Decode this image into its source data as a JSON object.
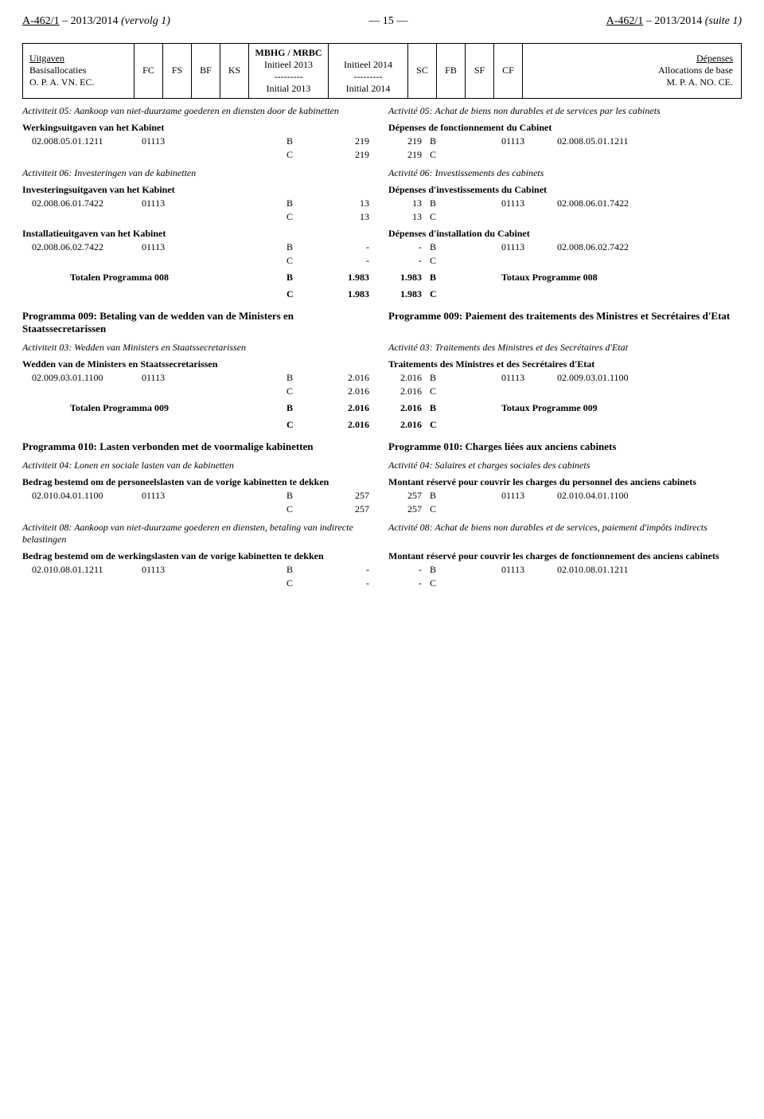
{
  "header": {
    "left_ref": "A-462/1",
    "left_session": " – 2013/2014 ",
    "left_suffix": "(vervolg 1)",
    "center": "— 15 —",
    "right_ref": "A-462/1",
    "right_session": " – 2013/2014 ",
    "right_suffix": "(suite 1)"
  },
  "top": {
    "uitgaven": "Uitgaven",
    "basis_nl": "Basisallocaties",
    "basis_nl2": "O. P. A. VN. EC.",
    "cols": {
      "FC": "FC",
      "FS": "FS",
      "BF": "BF",
      "KS": "KS",
      "SC": "SC",
      "FB": "FB",
      "SF": "SF",
      "CF": "CF"
    },
    "mbhg": "MBHG / MRBC",
    "init2013": "Initieel 2013",
    "sep": "---------",
    "initial2013": "Initial 2013",
    "init2014": "Initieel 2014",
    "initial2014": "Initial 2014",
    "depenses": "Dépenses",
    "alloc_fr": "Allocations de base",
    "alloc_fr2": "M. P. A. NO. CE."
  },
  "act05": {
    "nl": "Activiteit 05: Aankoop van niet-duurzame goederen en diensten door de kabinetten",
    "fr": "Activité 05: Achat de biens non durables et de services par les cabinets"
  },
  "r05": {
    "title_nl": "Werkingsuitgaven van het Kabinet",
    "title_fr": "Dépenses de fonctionnement du Cabinet",
    "code_nl": "02.008.05.01.1211",
    "code_fr": "02.008.05.01.1211",
    "fc": "01113",
    "b": "B",
    "c": "C",
    "vB_l": "219",
    "vC_l": "219",
    "vB_r": "219",
    "vC_r": "219"
  },
  "act06": {
    "nl": "Activiteit 06: Investeringen van de kabinetten",
    "fr": "Activité 06: Investissements des cabinets"
  },
  "r06a": {
    "title_nl": "Investeringsuitgaven van het Kabinet",
    "title_fr": "Dépenses d'investissements du Cabinet",
    "code_nl": "02.008.06.01.7422",
    "code_fr": "02.008.06.01.7422",
    "fc": "01113",
    "b": "B",
    "c": "C",
    "vB_l": "13",
    "vC_l": "13",
    "vB_r": "13",
    "vC_r": "13"
  },
  "r06b": {
    "title_nl": "Installatieuitgaven van het Kabinet",
    "title_fr": "Dépenses d'installation du Cabinet",
    "code_nl": "02.008.06.02.7422",
    "code_fr": "02.008.06.02.7422",
    "fc": "01113",
    "b": "B",
    "c": "C",
    "vB_l": "-",
    "vC_l": "-",
    "vB_r": "-",
    "vC_r": "-"
  },
  "tot008": {
    "label_nl": "Totalen Programma 008",
    "label_fr": "Totaux Programme 008",
    "b": "B",
    "c": "C",
    "vB_l": "1.983",
    "vC_l": "1.983",
    "vB_r": "1.983",
    "vC_r": "1.983"
  },
  "prog009": {
    "nl": "Programma 009: Betaling van de wedden van de Ministers en Staatssecretarissen",
    "fr": "Programme 009: Paiement des traitements des Ministres et Secrétaires d'Etat"
  },
  "act03": {
    "nl": "Activiteit 03: Wedden van Ministers en Staatssecretarissen",
    "fr": "Activité 03: Traitements des Ministres et des Secrétaires d'Etat"
  },
  "r03": {
    "title_nl": "Wedden van de Ministers en Staatssecretarissen",
    "title_fr": "Traitements des Ministres et des Secrétaires d'Etat",
    "code_nl": "02.009.03.01.1100",
    "code_fr": "02.009.03.01.1100",
    "fc": "01113",
    "b": "B",
    "c": "C",
    "vB_l": "2.016",
    "vC_l": "2.016",
    "vB_r": "2.016",
    "vC_r": "2.016"
  },
  "tot009": {
    "label_nl": "Totalen Programma 009",
    "label_fr": "Totaux Programme 009",
    "b": "B",
    "c": "C",
    "vB_l": "2.016",
    "vC_l": "2.016",
    "vB_r": "2.016",
    "vC_r": "2.016"
  },
  "prog010": {
    "nl": "Programma 010: Lasten verbonden met de voormalige kabinetten",
    "fr": "Programme 010: Charges liées aux anciens cabinets"
  },
  "act04": {
    "nl": "Activiteit 04: Lonen en sociale lasten van de kabinetten",
    "fr": "Activité 04: Salaires et charges sociales des cabinets"
  },
  "r04": {
    "title_nl": "Bedrag bestemd om de personeelslasten van de vorige kabinetten te dekken",
    "title_fr": "Montant réservé pour couvrir les charges du personnel des anciens cabinets",
    "code_nl": "02.010.04.01.1100",
    "code_fr": "02.010.04.01.1100",
    "fc": "01113",
    "b": "B",
    "c": "C",
    "vB_l": "257",
    "vC_l": "257",
    "vB_r": "257",
    "vC_r": "257"
  },
  "act08": {
    "nl": "Activiteit 08: Aankoop van niet-duurzame goederen en diensten, betaling van indirecte belastingen",
    "fr": "Activité 08: Achat de biens non durables et de services, paiement d'impôts indirects"
  },
  "r08": {
    "title_nl": "Bedrag bestemd om de werkingslasten van de vorige kabinetten te dekken",
    "title_fr": "Montant réservé pour couvrir les charges de fonctionnement des anciens cabinets",
    "code_nl": "02.010.08.01.1211",
    "code_fr": "02.010.08.01.1211",
    "fc": "01113",
    "b": "B",
    "c": "C",
    "vB_l": "-",
    "vC_l": "-",
    "vB_r": "-",
    "vC_r": "-"
  }
}
